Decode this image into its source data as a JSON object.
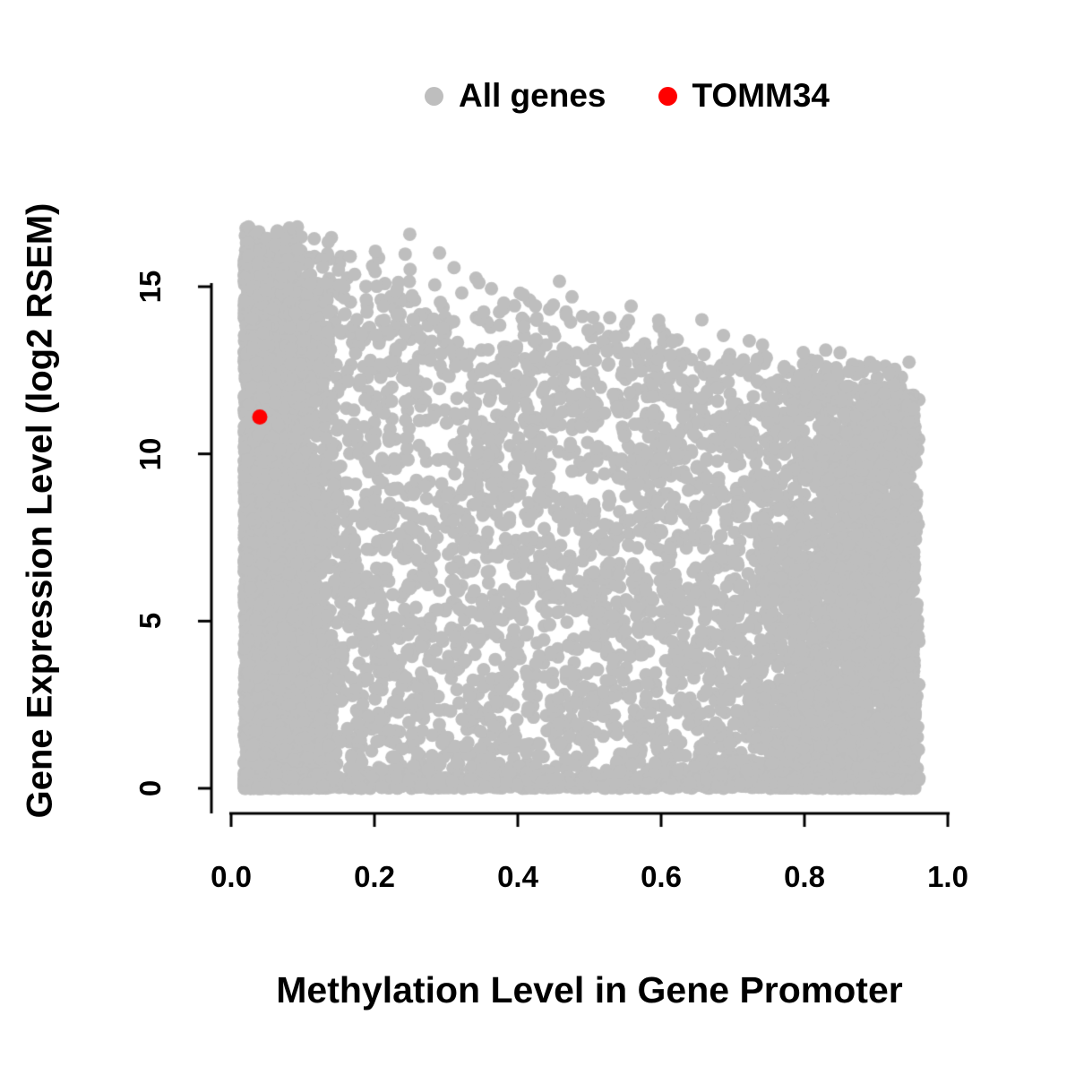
{
  "chart_data": {
    "type": "scatter",
    "title": "",
    "xlabel": "Methylation Level in Gene Promoter",
    "ylabel": "Gene Expression Level (log2 RSEM)",
    "xlim": [
      0,
      1
    ],
    "ylim": [
      0,
      17
    ],
    "grid": false,
    "legend_position": "top-center",
    "x_ticks": {
      "values": [
        0,
        0.2,
        0.4,
        0.6,
        0.8,
        1.0
      ],
      "labels": [
        "0.0",
        "0.2",
        "0.4",
        "0.6",
        "0.8",
        "1.0"
      ]
    },
    "y_ticks": {
      "values": [
        0,
        5,
        10,
        15
      ],
      "labels": [
        "0",
        "5",
        "10",
        "15"
      ]
    },
    "legend": [
      {
        "label": "All genes",
        "color": "#bebebe"
      },
      {
        "label": "TOMM34",
        "color": "#ff0000"
      }
    ],
    "series": [
      {
        "name": "All genes",
        "type": "point-cloud",
        "color": "#bebebe",
        "n": 12000,
        "seed": 42,
        "x_range": [
          0.01,
          0.96
        ],
        "y_range": [
          0,
          16.85
        ],
        "upper_envelope": "y ~= 16.6 - 5.1*x",
        "description": "Dense wedge-shaped cloud: expression spans 0-16.5 at low promoter methylation; maximum expression declines roughly linearly as methylation increases; dense vertical band near x~0.02-0.12, dense baseline near y=0 across all x, secondary dense cluster near x~0.85-0.96 with y below ~12."
      },
      {
        "name": "TOMM34",
        "type": "highlight-point",
        "color": "#ff0000",
        "points": [
          [
            0.04,
            11.1
          ]
        ]
      }
    ]
  }
}
